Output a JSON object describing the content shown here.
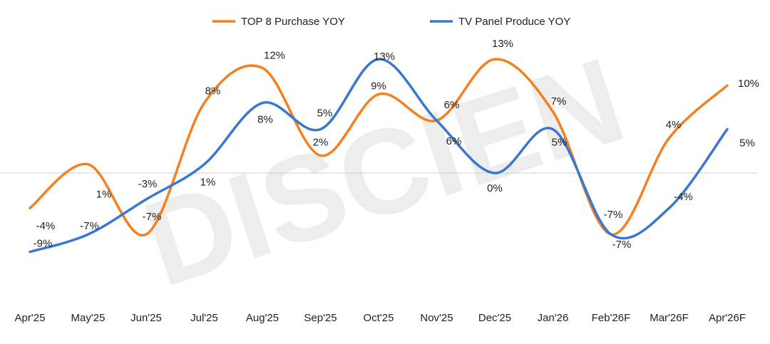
{
  "watermark": "DISCIEN",
  "chart_data": {
    "type": "line",
    "title": "",
    "xlabel": "",
    "ylabel": "",
    "legend_position": "top",
    "grid": false,
    "zero_line": true,
    "smooth": true,
    "ylim": [
      -15,
      15
    ],
    "categories": [
      "Apr'25",
      "May'25",
      "Jun'25",
      "Jul'25",
      "Aug'25",
      "Sep'25",
      "Oct'25",
      "Nov'25",
      "Dec'25",
      "Jan'26",
      "Feb'26F",
      "Mar'26F",
      "Apr'26F"
    ],
    "series": [
      {
        "name": "TOP 8 Purchase YOY",
        "color": "#f5801f",
        "values": [
          -4,
          1,
          -7,
          8,
          12,
          2,
          9,
          6,
          13,
          7,
          -7,
          4,
          10
        ],
        "labels": [
          "-4%",
          "1%",
          "-7%",
          "8%",
          "12%",
          "2%",
          "9%",
          "6%",
          "13%",
          "7%",
          "-7%",
          "4%",
          "10%"
        ]
      },
      {
        "name": "TV Panel Produce YOY",
        "color": "#3a78d0",
        "values": [
          -9,
          -7,
          -3,
          1,
          8,
          5,
          13,
          6,
          0,
          5,
          -7,
          -4,
          5
        ],
        "labels": [
          "-9%",
          "-7%",
          "-3%",
          "1%",
          "8%",
          "5%",
          "13%",
          "6%",
          "0%",
          "5%",
          "-7%",
          "-4%",
          "5%"
        ]
      }
    ]
  }
}
